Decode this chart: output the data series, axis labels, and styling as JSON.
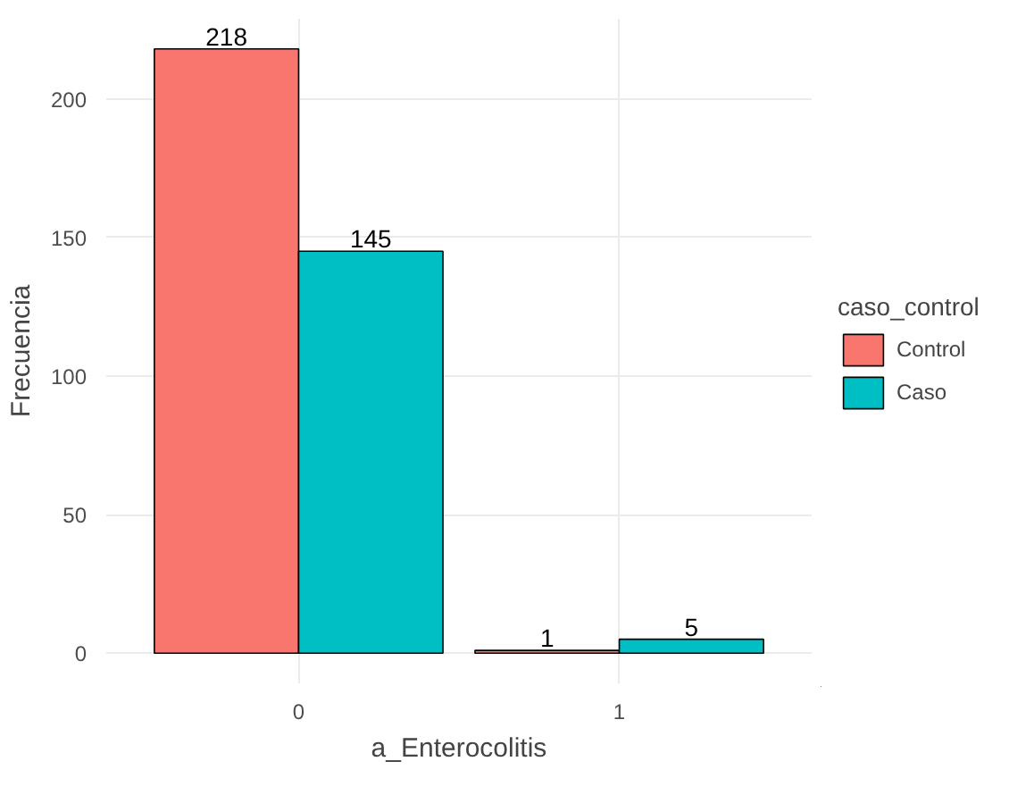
{
  "chart_data": {
    "type": "bar",
    "xlabel": "a_Enterocolitis",
    "ylabel": "Frecuencia",
    "legend_title": "caso_control",
    "categories": [
      "0",
      "1"
    ],
    "series": [
      {
        "name": "Control",
        "color": "#f8766d",
        "values": [
          218,
          1
        ]
      },
      {
        "name": "Caso",
        "color": "#00bfc4",
        "values": [
          145,
          5
        ]
      }
    ],
    "ylim": [
      -10.9,
      228.9
    ],
    "yticks": [
      0,
      50,
      100,
      150,
      200
    ],
    "grid": true,
    "legend": "right",
    "data_labels": true
  }
}
